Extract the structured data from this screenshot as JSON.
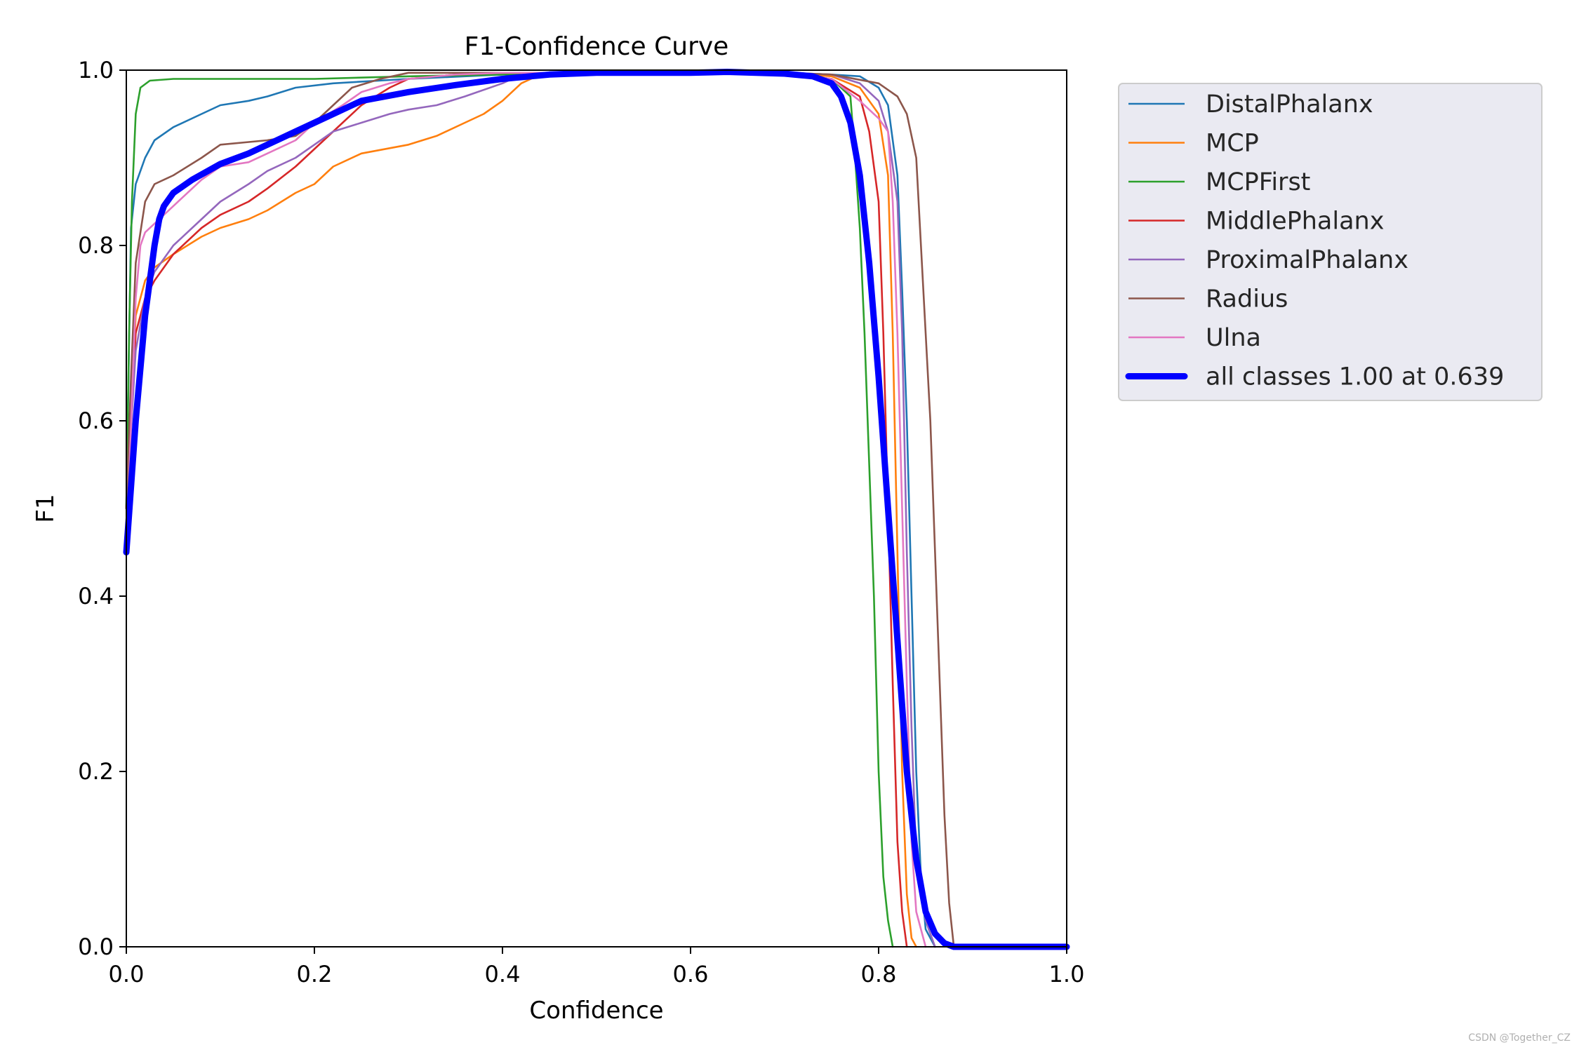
{
  "watermark": "CSDN @Together_CZ",
  "chart_data": {
    "type": "line",
    "title": "F1-Confidence Curve",
    "xlabel": "Confidence",
    "ylabel": "F1",
    "xlim": [
      0.0,
      1.0
    ],
    "ylim": [
      0.0,
      1.0
    ],
    "xticks": [
      "0.0",
      "0.2",
      "0.4",
      "0.6",
      "0.8",
      "1.0"
    ],
    "yticks": [
      "0.0",
      "0.2",
      "0.4",
      "0.6",
      "0.8",
      "1.0"
    ],
    "grid": false,
    "legend_position": "outside upper right",
    "series": [
      {
        "name": "DistalPhalanx",
        "color": "#1f77b4",
        "points": [
          [
            0.0,
            0.5
          ],
          [
            0.005,
            0.82
          ],
          [
            0.01,
            0.87
          ],
          [
            0.02,
            0.9
          ],
          [
            0.03,
            0.92
          ],
          [
            0.05,
            0.935
          ],
          [
            0.08,
            0.95
          ],
          [
            0.1,
            0.96
          ],
          [
            0.13,
            0.965
          ],
          [
            0.15,
            0.97
          ],
          [
            0.18,
            0.98
          ],
          [
            0.22,
            0.985
          ],
          [
            0.3,
            0.99
          ],
          [
            0.4,
            0.995
          ],
          [
            0.5,
            0.997
          ],
          [
            0.6,
            0.997
          ],
          [
            0.7,
            0.997
          ],
          [
            0.75,
            0.995
          ],
          [
            0.78,
            0.993
          ],
          [
            0.8,
            0.98
          ],
          [
            0.81,
            0.96
          ],
          [
            0.82,
            0.88
          ],
          [
            0.825,
            0.75
          ],
          [
            0.83,
            0.6
          ],
          [
            0.835,
            0.4
          ],
          [
            0.84,
            0.2
          ],
          [
            0.845,
            0.08
          ],
          [
            0.85,
            0.02
          ],
          [
            0.86,
            0.0
          ]
        ]
      },
      {
        "name": "MCP",
        "color": "#ff7f0e",
        "points": [
          [
            0.0,
            0.5
          ],
          [
            0.01,
            0.72
          ],
          [
            0.02,
            0.76
          ],
          [
            0.03,
            0.775
          ],
          [
            0.05,
            0.79
          ],
          [
            0.08,
            0.81
          ],
          [
            0.1,
            0.82
          ],
          [
            0.13,
            0.83
          ],
          [
            0.15,
            0.84
          ],
          [
            0.18,
            0.86
          ],
          [
            0.2,
            0.87
          ],
          [
            0.22,
            0.89
          ],
          [
            0.25,
            0.905
          ],
          [
            0.3,
            0.915
          ],
          [
            0.33,
            0.925
          ],
          [
            0.36,
            0.94
          ],
          [
            0.38,
            0.95
          ],
          [
            0.4,
            0.965
          ],
          [
            0.42,
            0.985
          ],
          [
            0.44,
            0.995
          ],
          [
            0.5,
            0.997
          ],
          [
            0.6,
            0.997
          ],
          [
            0.7,
            0.997
          ],
          [
            0.75,
            0.993
          ],
          [
            0.78,
            0.98
          ],
          [
            0.8,
            0.95
          ],
          [
            0.81,
            0.88
          ],
          [
            0.815,
            0.7
          ],
          [
            0.82,
            0.45
          ],
          [
            0.825,
            0.2
          ],
          [
            0.83,
            0.06
          ],
          [
            0.835,
            0.01
          ],
          [
            0.84,
            0.0
          ]
        ]
      },
      {
        "name": "MCPFirst",
        "color": "#2ca02c",
        "points": [
          [
            0.0,
            0.5
          ],
          [
            0.003,
            0.7
          ],
          [
            0.006,
            0.85
          ],
          [
            0.01,
            0.95
          ],
          [
            0.015,
            0.98
          ],
          [
            0.025,
            0.988
          ],
          [
            0.05,
            0.99
          ],
          [
            0.1,
            0.99
          ],
          [
            0.2,
            0.99
          ],
          [
            0.3,
            0.993
          ],
          [
            0.4,
            0.995
          ],
          [
            0.5,
            0.997
          ],
          [
            0.6,
            0.997
          ],
          [
            0.7,
            0.997
          ],
          [
            0.75,
            0.99
          ],
          [
            0.77,
            0.97
          ],
          [
            0.775,
            0.9
          ],
          [
            0.78,
            0.82
          ],
          [
            0.785,
            0.7
          ],
          [
            0.79,
            0.55
          ],
          [
            0.795,
            0.4
          ],
          [
            0.8,
            0.2
          ],
          [
            0.805,
            0.08
          ],
          [
            0.81,
            0.03
          ],
          [
            0.815,
            0.0
          ]
        ]
      },
      {
        "name": "MiddlePhalanx",
        "color": "#d62728",
        "points": [
          [
            0.0,
            0.5
          ],
          [
            0.01,
            0.7
          ],
          [
            0.02,
            0.74
          ],
          [
            0.03,
            0.76
          ],
          [
            0.05,
            0.79
          ],
          [
            0.08,
            0.82
          ],
          [
            0.1,
            0.835
          ],
          [
            0.13,
            0.85
          ],
          [
            0.15,
            0.865
          ],
          [
            0.18,
            0.89
          ],
          [
            0.2,
            0.91
          ],
          [
            0.22,
            0.93
          ],
          [
            0.25,
            0.96
          ],
          [
            0.28,
            0.98
          ],
          [
            0.3,
            0.99
          ],
          [
            0.35,
            0.995
          ],
          [
            0.4,
            0.997
          ],
          [
            0.5,
            0.997
          ],
          [
            0.6,
            0.997
          ],
          [
            0.7,
            0.997
          ],
          [
            0.75,
            0.99
          ],
          [
            0.78,
            0.97
          ],
          [
            0.79,
            0.93
          ],
          [
            0.8,
            0.85
          ],
          [
            0.805,
            0.7
          ],
          [
            0.81,
            0.5
          ],
          [
            0.815,
            0.3
          ],
          [
            0.82,
            0.12
          ],
          [
            0.825,
            0.04
          ],
          [
            0.83,
            0.0
          ]
        ]
      },
      {
        "name": "ProximalPhalanx",
        "color": "#9467bd",
        "points": [
          [
            0.0,
            0.5
          ],
          [
            0.01,
            0.68
          ],
          [
            0.02,
            0.74
          ],
          [
            0.03,
            0.77
          ],
          [
            0.05,
            0.8
          ],
          [
            0.08,
            0.83
          ],
          [
            0.1,
            0.85
          ],
          [
            0.13,
            0.87
          ],
          [
            0.15,
            0.885
          ],
          [
            0.18,
            0.9
          ],
          [
            0.2,
            0.915
          ],
          [
            0.22,
            0.93
          ],
          [
            0.25,
            0.94
          ],
          [
            0.28,
            0.95
          ],
          [
            0.3,
            0.955
          ],
          [
            0.33,
            0.96
          ],
          [
            0.36,
            0.97
          ],
          [
            0.4,
            0.985
          ],
          [
            0.42,
            0.995
          ],
          [
            0.5,
            0.997
          ],
          [
            0.6,
            0.997
          ],
          [
            0.7,
            0.997
          ],
          [
            0.75,
            0.995
          ],
          [
            0.78,
            0.985
          ],
          [
            0.8,
            0.965
          ],
          [
            0.81,
            0.93
          ],
          [
            0.82,
            0.85
          ],
          [
            0.825,
            0.7
          ],
          [
            0.83,
            0.45
          ],
          [
            0.835,
            0.25
          ],
          [
            0.84,
            0.1
          ],
          [
            0.85,
            0.03
          ],
          [
            0.86,
            0.0
          ]
        ]
      },
      {
        "name": "Radius",
        "color": "#8c564b",
        "points": [
          [
            0.0,
            0.5
          ],
          [
            0.005,
            0.65
          ],
          [
            0.01,
            0.78
          ],
          [
            0.02,
            0.85
          ],
          [
            0.03,
            0.87
          ],
          [
            0.05,
            0.88
          ],
          [
            0.08,
            0.9
          ],
          [
            0.1,
            0.915
          ],
          [
            0.15,
            0.92
          ],
          [
            0.18,
            0.925
          ],
          [
            0.2,
            0.94
          ],
          [
            0.22,
            0.96
          ],
          [
            0.24,
            0.98
          ],
          [
            0.27,
            0.99
          ],
          [
            0.3,
            0.997
          ],
          [
            0.4,
            0.997
          ],
          [
            0.5,
            0.997
          ],
          [
            0.6,
            0.997
          ],
          [
            0.7,
            0.997
          ],
          [
            0.75,
            0.995
          ],
          [
            0.8,
            0.985
          ],
          [
            0.82,
            0.97
          ],
          [
            0.83,
            0.95
          ],
          [
            0.84,
            0.9
          ],
          [
            0.845,
            0.8
          ],
          [
            0.85,
            0.7
          ],
          [
            0.855,
            0.6
          ],
          [
            0.86,
            0.45
          ],
          [
            0.865,
            0.3
          ],
          [
            0.87,
            0.15
          ],
          [
            0.875,
            0.05
          ],
          [
            0.88,
            0.0
          ]
        ]
      },
      {
        "name": "Ulna",
        "color": "#e377c2",
        "points": [
          [
            0.0,
            0.45
          ],
          [
            0.01,
            0.74
          ],
          [
            0.015,
            0.8
          ],
          [
            0.02,
            0.815
          ],
          [
            0.03,
            0.825
          ],
          [
            0.05,
            0.845
          ],
          [
            0.08,
            0.875
          ],
          [
            0.1,
            0.89
          ],
          [
            0.13,
            0.895
          ],
          [
            0.15,
            0.905
          ],
          [
            0.18,
            0.92
          ],
          [
            0.2,
            0.94
          ],
          [
            0.23,
            0.96
          ],
          [
            0.25,
            0.975
          ],
          [
            0.28,
            0.985
          ],
          [
            0.3,
            0.99
          ],
          [
            0.35,
            0.995
          ],
          [
            0.4,
            0.997
          ],
          [
            0.5,
            0.997
          ],
          [
            0.6,
            0.997
          ],
          [
            0.7,
            0.997
          ],
          [
            0.75,
            0.99
          ],
          [
            0.78,
            0.965
          ],
          [
            0.8,
            0.945
          ],
          [
            0.81,
            0.93
          ],
          [
            0.815,
            0.85
          ],
          [
            0.82,
            0.7
          ],
          [
            0.825,
            0.5
          ],
          [
            0.83,
            0.3
          ],
          [
            0.835,
            0.12
          ],
          [
            0.84,
            0.04
          ],
          [
            0.85,
            0.0
          ]
        ]
      },
      {
        "name": "all classes 1.00 at 0.639",
        "color": "#0000ff",
        "thick": true,
        "points": [
          [
            0.0,
            0.45
          ],
          [
            0.01,
            0.6
          ],
          [
            0.02,
            0.72
          ],
          [
            0.025,
            0.76
          ],
          [
            0.03,
            0.8
          ],
          [
            0.035,
            0.83
          ],
          [
            0.04,
            0.845
          ],
          [
            0.05,
            0.86
          ],
          [
            0.07,
            0.875
          ],
          [
            0.1,
            0.893
          ],
          [
            0.13,
            0.905
          ],
          [
            0.15,
            0.915
          ],
          [
            0.18,
            0.93
          ],
          [
            0.2,
            0.94
          ],
          [
            0.22,
            0.95
          ],
          [
            0.25,
            0.965
          ],
          [
            0.3,
            0.975
          ],
          [
            0.35,
            0.983
          ],
          [
            0.4,
            0.99
          ],
          [
            0.45,
            0.995
          ],
          [
            0.5,
            0.997
          ],
          [
            0.55,
            0.997
          ],
          [
            0.6,
            0.997
          ],
          [
            0.639,
            0.998
          ],
          [
            0.7,
            0.996
          ],
          [
            0.73,
            0.993
          ],
          [
            0.75,
            0.985
          ],
          [
            0.76,
            0.97
          ],
          [
            0.77,
            0.94
          ],
          [
            0.78,
            0.88
          ],
          [
            0.79,
            0.78
          ],
          [
            0.8,
            0.65
          ],
          [
            0.81,
            0.5
          ],
          [
            0.82,
            0.35
          ],
          [
            0.83,
            0.2
          ],
          [
            0.84,
            0.1
          ],
          [
            0.85,
            0.04
          ],
          [
            0.86,
            0.015
          ],
          [
            0.87,
            0.004
          ],
          [
            0.88,
            0.0
          ],
          [
            0.9,
            0.0
          ],
          [
            1.0,
            0.0
          ]
        ]
      }
    ]
  }
}
